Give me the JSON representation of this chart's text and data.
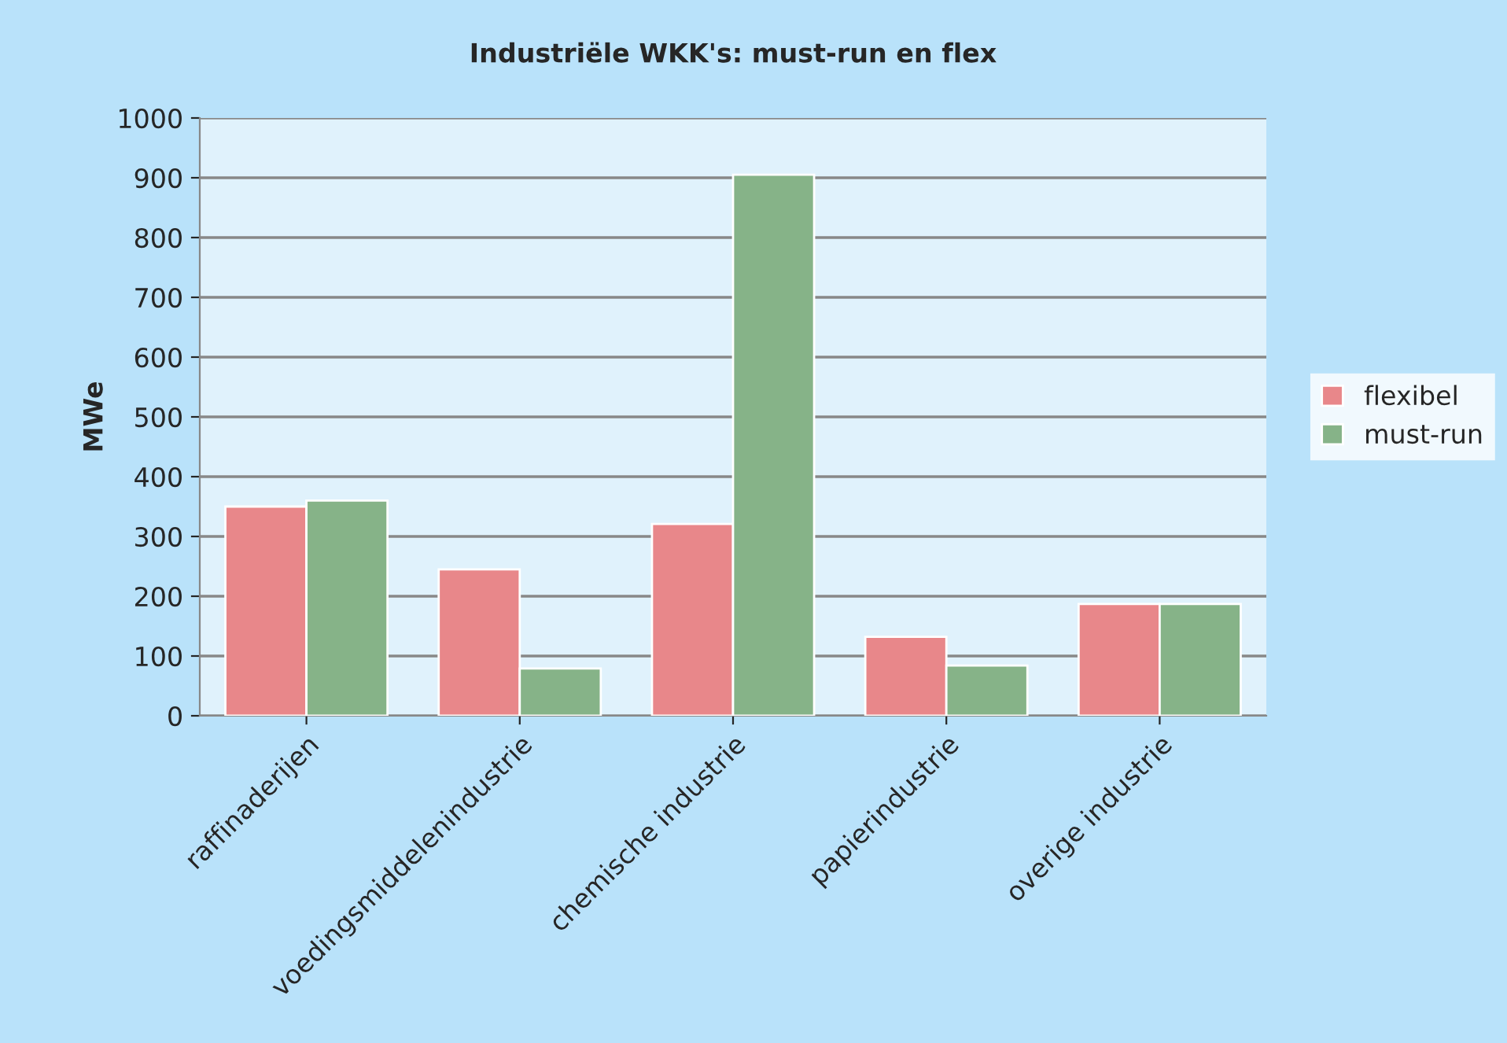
{
  "chart_data": {
    "type": "bar",
    "title": "Industriële WKK's: must-run en flex",
    "ylabel": "MWe",
    "categories": [
      "raffinaderijen",
      "voedingsmiddelenindustrie",
      "chemische industrie",
      "papierindustrie",
      "overige industrie"
    ],
    "series": [
      {
        "name": "flexibel",
        "color": "#e8878a",
        "values": [
          350,
          245,
          321,
          132,
          187
        ]
      },
      {
        "name": "must-run",
        "color": "#86b388",
        "values": [
          360,
          79,
          905,
          84,
          187
        ]
      }
    ],
    "ylim": [
      0,
      1000
    ],
    "yticks": [
      0,
      100,
      200,
      300,
      400,
      500,
      600,
      700,
      800,
      900,
      1000
    ],
    "grid": "y",
    "legend": "right"
  }
}
